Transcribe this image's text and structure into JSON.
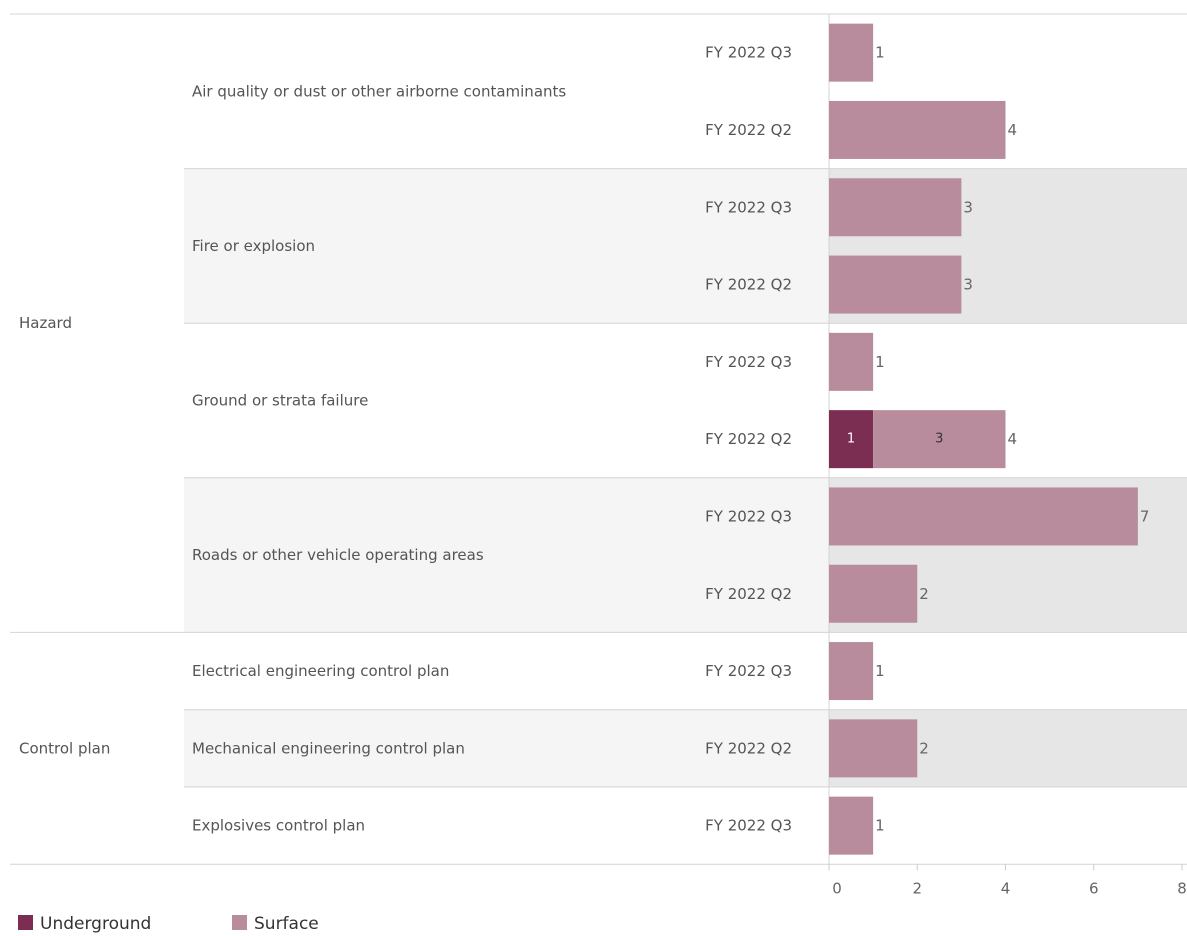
{
  "chart_data": {
    "type": "bar",
    "orientation": "horizontal",
    "stacked": true,
    "x_ticks": [
      0,
      2,
      4,
      6,
      8
    ],
    "xlim": [
      0,
      8
    ],
    "grid": false,
    "legend_position": "bottom-left",
    "series": [
      {
        "name": "Underground",
        "color": "#7b2d52"
      },
      {
        "name": "Surface",
        "color": "#b88c9d"
      }
    ],
    "groups": [
      {
        "label": "Hazard",
        "subgroups": [
          {
            "label": "Air quality or dust or other airborne contaminants",
            "rows": [
              {
                "period": "FY 2022 Q3",
                "underground": 0,
                "surface": 1,
                "total": 1
              },
              {
                "period": "FY 2022 Q2",
                "underground": 0,
                "surface": 4,
                "total": 4
              }
            ]
          },
          {
            "label": "Fire or explosion",
            "rows": [
              {
                "period": "FY 2022 Q3",
                "underground": 0,
                "surface": 3,
                "total": 3
              },
              {
                "period": "FY 2022 Q2",
                "underground": 0,
                "surface": 3,
                "total": 3
              }
            ]
          },
          {
            "label": "Ground or strata failure",
            "rows": [
              {
                "period": "FY 2022 Q3",
                "underground": 0,
                "surface": 1,
                "total": 1
              },
              {
                "period": "FY 2022 Q2",
                "underground": 1,
                "surface": 3,
                "total": 4
              }
            ]
          },
          {
            "label": "Roads or other vehicle operating areas",
            "rows": [
              {
                "period": "FY 2022 Q3",
                "underground": 0,
                "surface": 7,
                "total": 7
              },
              {
                "period": "FY 2022 Q2",
                "underground": 0,
                "surface": 2,
                "total": 2
              }
            ]
          }
        ]
      },
      {
        "label": "Control plan",
        "subgroups": [
          {
            "label": "Electrical engineering control plan",
            "rows": [
              {
                "period": "FY 2022 Q3",
                "underground": 0,
                "surface": 1,
                "total": 1
              }
            ]
          },
          {
            "label": "Mechanical engineering control plan",
            "rows": [
              {
                "period": "FY 2022 Q2",
                "underground": 0,
                "surface": 2,
                "total": 2
              }
            ]
          },
          {
            "label": "Explosives control plan",
            "rows": [
              {
                "period": "FY 2022 Q3",
                "underground": 0,
                "surface": 1,
                "total": 1
              }
            ]
          }
        ]
      }
    ]
  }
}
